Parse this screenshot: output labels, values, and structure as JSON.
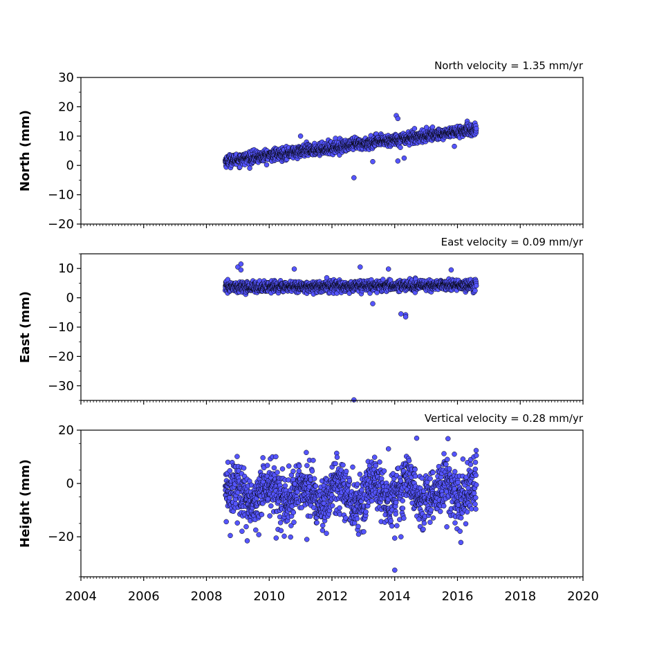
{
  "chart_data": [
    {
      "type": "scatter",
      "annotation": "North velocity = 1.35 mm/yr",
      "ylabel": "North (mm)",
      "xlim": [
        2004,
        2020
      ],
      "ylim": [
        -20,
        30
      ],
      "x_ticks": [
        "2004",
        "2006",
        "2008",
        "2010",
        "2012",
        "2014",
        "2016",
        "2018",
        "2020"
      ],
      "y_ticks": [
        {
          "value": 30,
          "label": "30"
        },
        {
          "value": 20,
          "label": "20"
        },
        {
          "value": 10,
          "label": "10"
        },
        {
          "value": 0,
          "label": "0"
        },
        {
          "value": -10,
          "label": "−10"
        },
        {
          "value": -20,
          "label": "−20"
        }
      ],
      "x_range": [
        2008.6,
        2016.6
      ],
      "trend": {
        "start": 1.5,
        "slope": 1.35
      },
      "scatter_sd": 1.0,
      "outliers": [
        {
          "x": 2012.7,
          "y": -4.2
        },
        {
          "x": 2014.05,
          "y": 17.0
        },
        {
          "x": 2014.1,
          "y": 16.0
        },
        {
          "x": 2014.1,
          "y": 1.5
        },
        {
          "x": 2013.3,
          "y": 1.3
        },
        {
          "x": 2014.3,
          "y": 2.5
        },
        {
          "x": 2015.9,
          "y": 6.5
        },
        {
          "x": 2011.0,
          "y": 10.0
        }
      ]
    },
    {
      "type": "scatter",
      "annotation": "East velocity = 0.09 mm/yr",
      "ylabel": "East (mm)",
      "xlim": [
        2004,
        2020
      ],
      "ylim": [
        -35,
        15
      ],
      "x_ticks": [
        "2004",
        "2006",
        "2008",
        "2010",
        "2012",
        "2014",
        "2016",
        "2018",
        "2020"
      ],
      "y_ticks": [
        {
          "value": 10,
          "label": "10"
        },
        {
          "value": 0,
          "label": "0"
        },
        {
          "value": -10,
          "label": "−10"
        },
        {
          "value": -20,
          "label": "−20"
        },
        {
          "value": -30,
          "label": "−30"
        }
      ],
      "x_range": [
        2008.6,
        2016.6
      ],
      "trend": {
        "start": 3.6,
        "slope": 0.09
      },
      "scatter_sd": 0.9,
      "outliers": [
        {
          "x": 2012.7,
          "y": -34.8
        },
        {
          "x": 2009.0,
          "y": 10.5
        },
        {
          "x": 2009.1,
          "y": 11.5
        },
        {
          "x": 2009.1,
          "y": 9.5
        },
        {
          "x": 2010.8,
          "y": 9.8
        },
        {
          "x": 2012.9,
          "y": 10.5
        },
        {
          "x": 2013.8,
          "y": 9.8
        },
        {
          "x": 2015.8,
          "y": 9.5
        },
        {
          "x": 2013.3,
          "y": -2.0
        },
        {
          "x": 2014.2,
          "y": -5.5
        },
        {
          "x": 2014.35,
          "y": -5.8
        },
        {
          "x": 2014.35,
          "y": -6.5
        }
      ]
    },
    {
      "type": "scatter",
      "annotation": "Vertical velocity = 0.28 mm/yr",
      "ylabel": "Height (mm)",
      "xlim": [
        2004,
        2020
      ],
      "ylim": [
        -35,
        20
      ],
      "x_ticks": [
        "2004",
        "2006",
        "2008",
        "2010",
        "2012",
        "2014",
        "2016",
        "2018",
        "2020"
      ],
      "y_ticks": [
        {
          "value": 20,
          "label": "20"
        },
        {
          "value": 0,
          "label": "0"
        },
        {
          "value": -20,
          "label": "−20"
        }
      ],
      "x_range": [
        2008.6,
        2016.6
      ],
      "trend": {
        "start": -5.0,
        "slope": 0.28
      },
      "scatter_sd": 5.0,
      "outliers": [
        {
          "x": 2014.0,
          "y": -32.5
        },
        {
          "x": 2014.7,
          "y": 17.0
        },
        {
          "x": 2009.3,
          "y": -21.5
        },
        {
          "x": 2011.2,
          "y": -21.0
        },
        {
          "x": 2014.0,
          "y": -20.5
        },
        {
          "x": 2014.2,
          "y": -20.0
        },
        {
          "x": 2015.9,
          "y": 11.0
        },
        {
          "x": 2013.8,
          "y": 13.0
        },
        {
          "x": 2016.6,
          "y": 10.5
        }
      ]
    }
  ],
  "colors": {
    "marker_fill": "#5555ff",
    "marker_edge": "#000000",
    "axes": "#000000"
  }
}
